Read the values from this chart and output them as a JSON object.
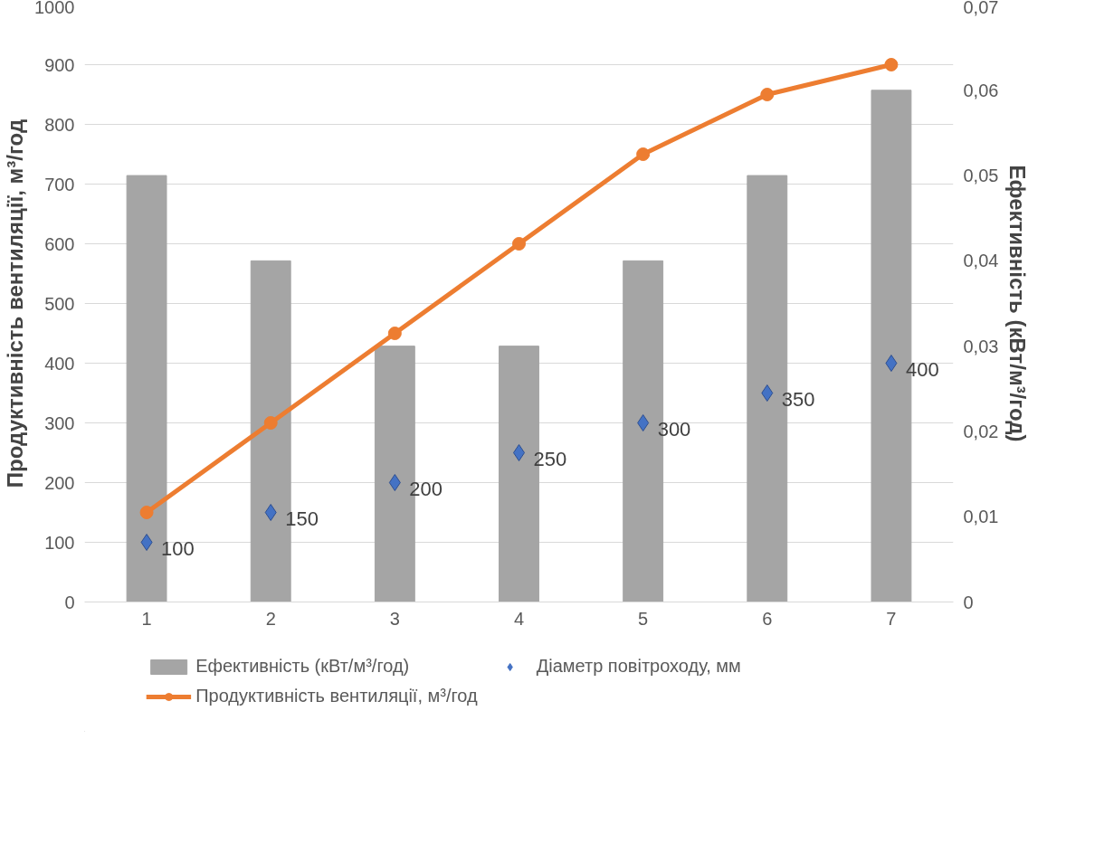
{
  "chart_data": {
    "type": "bar",
    "categories": [
      "1",
      "2",
      "3",
      "4",
      "5",
      "6",
      "7"
    ],
    "ylabel": "Продуктивність вентиляції, м³/год",
    "y2label": "Ефективність (кВт/м³/год)",
    "ylim": [
      0,
      1000
    ],
    "yticks": [
      0,
      100,
      200,
      300,
      400,
      500,
      600,
      700,
      800,
      900,
      1000
    ],
    "y2lim": [
      0,
      0.07
    ],
    "y2ticks": [
      0,
      {
        "value": 0.01,
        "label": "0,01"
      },
      {
        "value": 0.02,
        "label": "0,02"
      },
      {
        "value": 0.03,
        "label": "0,03"
      },
      {
        "value": 0.04,
        "label": "0,04"
      },
      {
        "value": 0.05,
        "label": "0,05"
      },
      {
        "value": 0.06,
        "label": "0,06"
      },
      {
        "value": 0.07,
        "label": "0,07"
      }
    ],
    "grid": "y",
    "legend": "bottom",
    "series": [
      {
        "name": "Ефективність (кВт/м³/год)",
        "axis": "y2",
        "color": "#a5a5a5",
        "values": [
          0.05,
          0.04,
          0.03,
          0.03,
          0.04,
          0.05,
          0.06
        ]
      },
      {
        "name": "Діаметр повітроходу, мм",
        "type": "scatter",
        "marker": "diamond",
        "color": "#4472c4",
        "values": [
          100,
          150,
          200,
          250,
          300,
          350,
          400
        ],
        "value_labels": [
          "100",
          "150",
          "200",
          "250",
          "300",
          "350",
          "400"
        ]
      },
      {
        "name": "Продуктивність вентиляції, м³/год",
        "type": "line",
        "marker": "circle",
        "line_style": "solid",
        "color": "#ed7d31",
        "values": [
          150,
          300,
          450,
          600,
          750,
          850,
          900
        ]
      }
    ]
  }
}
